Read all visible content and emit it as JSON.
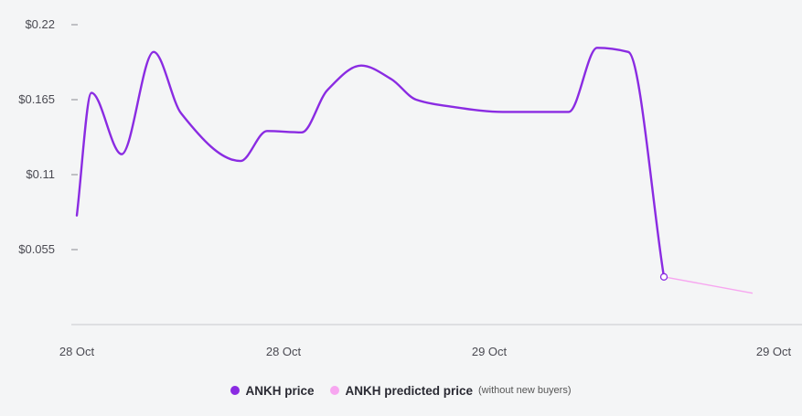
{
  "chart_data": {
    "type": "line",
    "title": "",
    "xlabel": "",
    "ylabel": "",
    "y_ticks": [
      0.055,
      0.11,
      0.165,
      0.22
    ],
    "y_tick_labels": [
      "$0.055",
      "$0.11",
      "$0.165",
      "$0.22"
    ],
    "ylim": [
      0,
      0.22
    ],
    "x_tick_labels": [
      "28 Oct",
      "28 Oct",
      "29 Oct",
      "29 Oct"
    ],
    "grid": false,
    "legend_position": "bottom",
    "colors": {
      "price": "#8a2be2",
      "predicted": "#f7a6f0",
      "axis": "#c9c9cd"
    },
    "series": [
      {
        "name": "ANKH price",
        "values": [
          0.08,
          0.17,
          0.125,
          0.2,
          0.155,
          0.12,
          0.142,
          0.141,
          0.172,
          0.19,
          0.18,
          0.165,
          0.16,
          0.156,
          0.156,
          0.203,
          0.2,
          0.035
        ]
      },
      {
        "name": "ANKH predicted price",
        "values": [
          0.035,
          0.023
        ]
      }
    ],
    "legend": [
      {
        "label": "ANKH price",
        "note": ""
      },
      {
        "label": "ANKH predicted price",
        "note": "(without new buyers)"
      }
    ]
  }
}
